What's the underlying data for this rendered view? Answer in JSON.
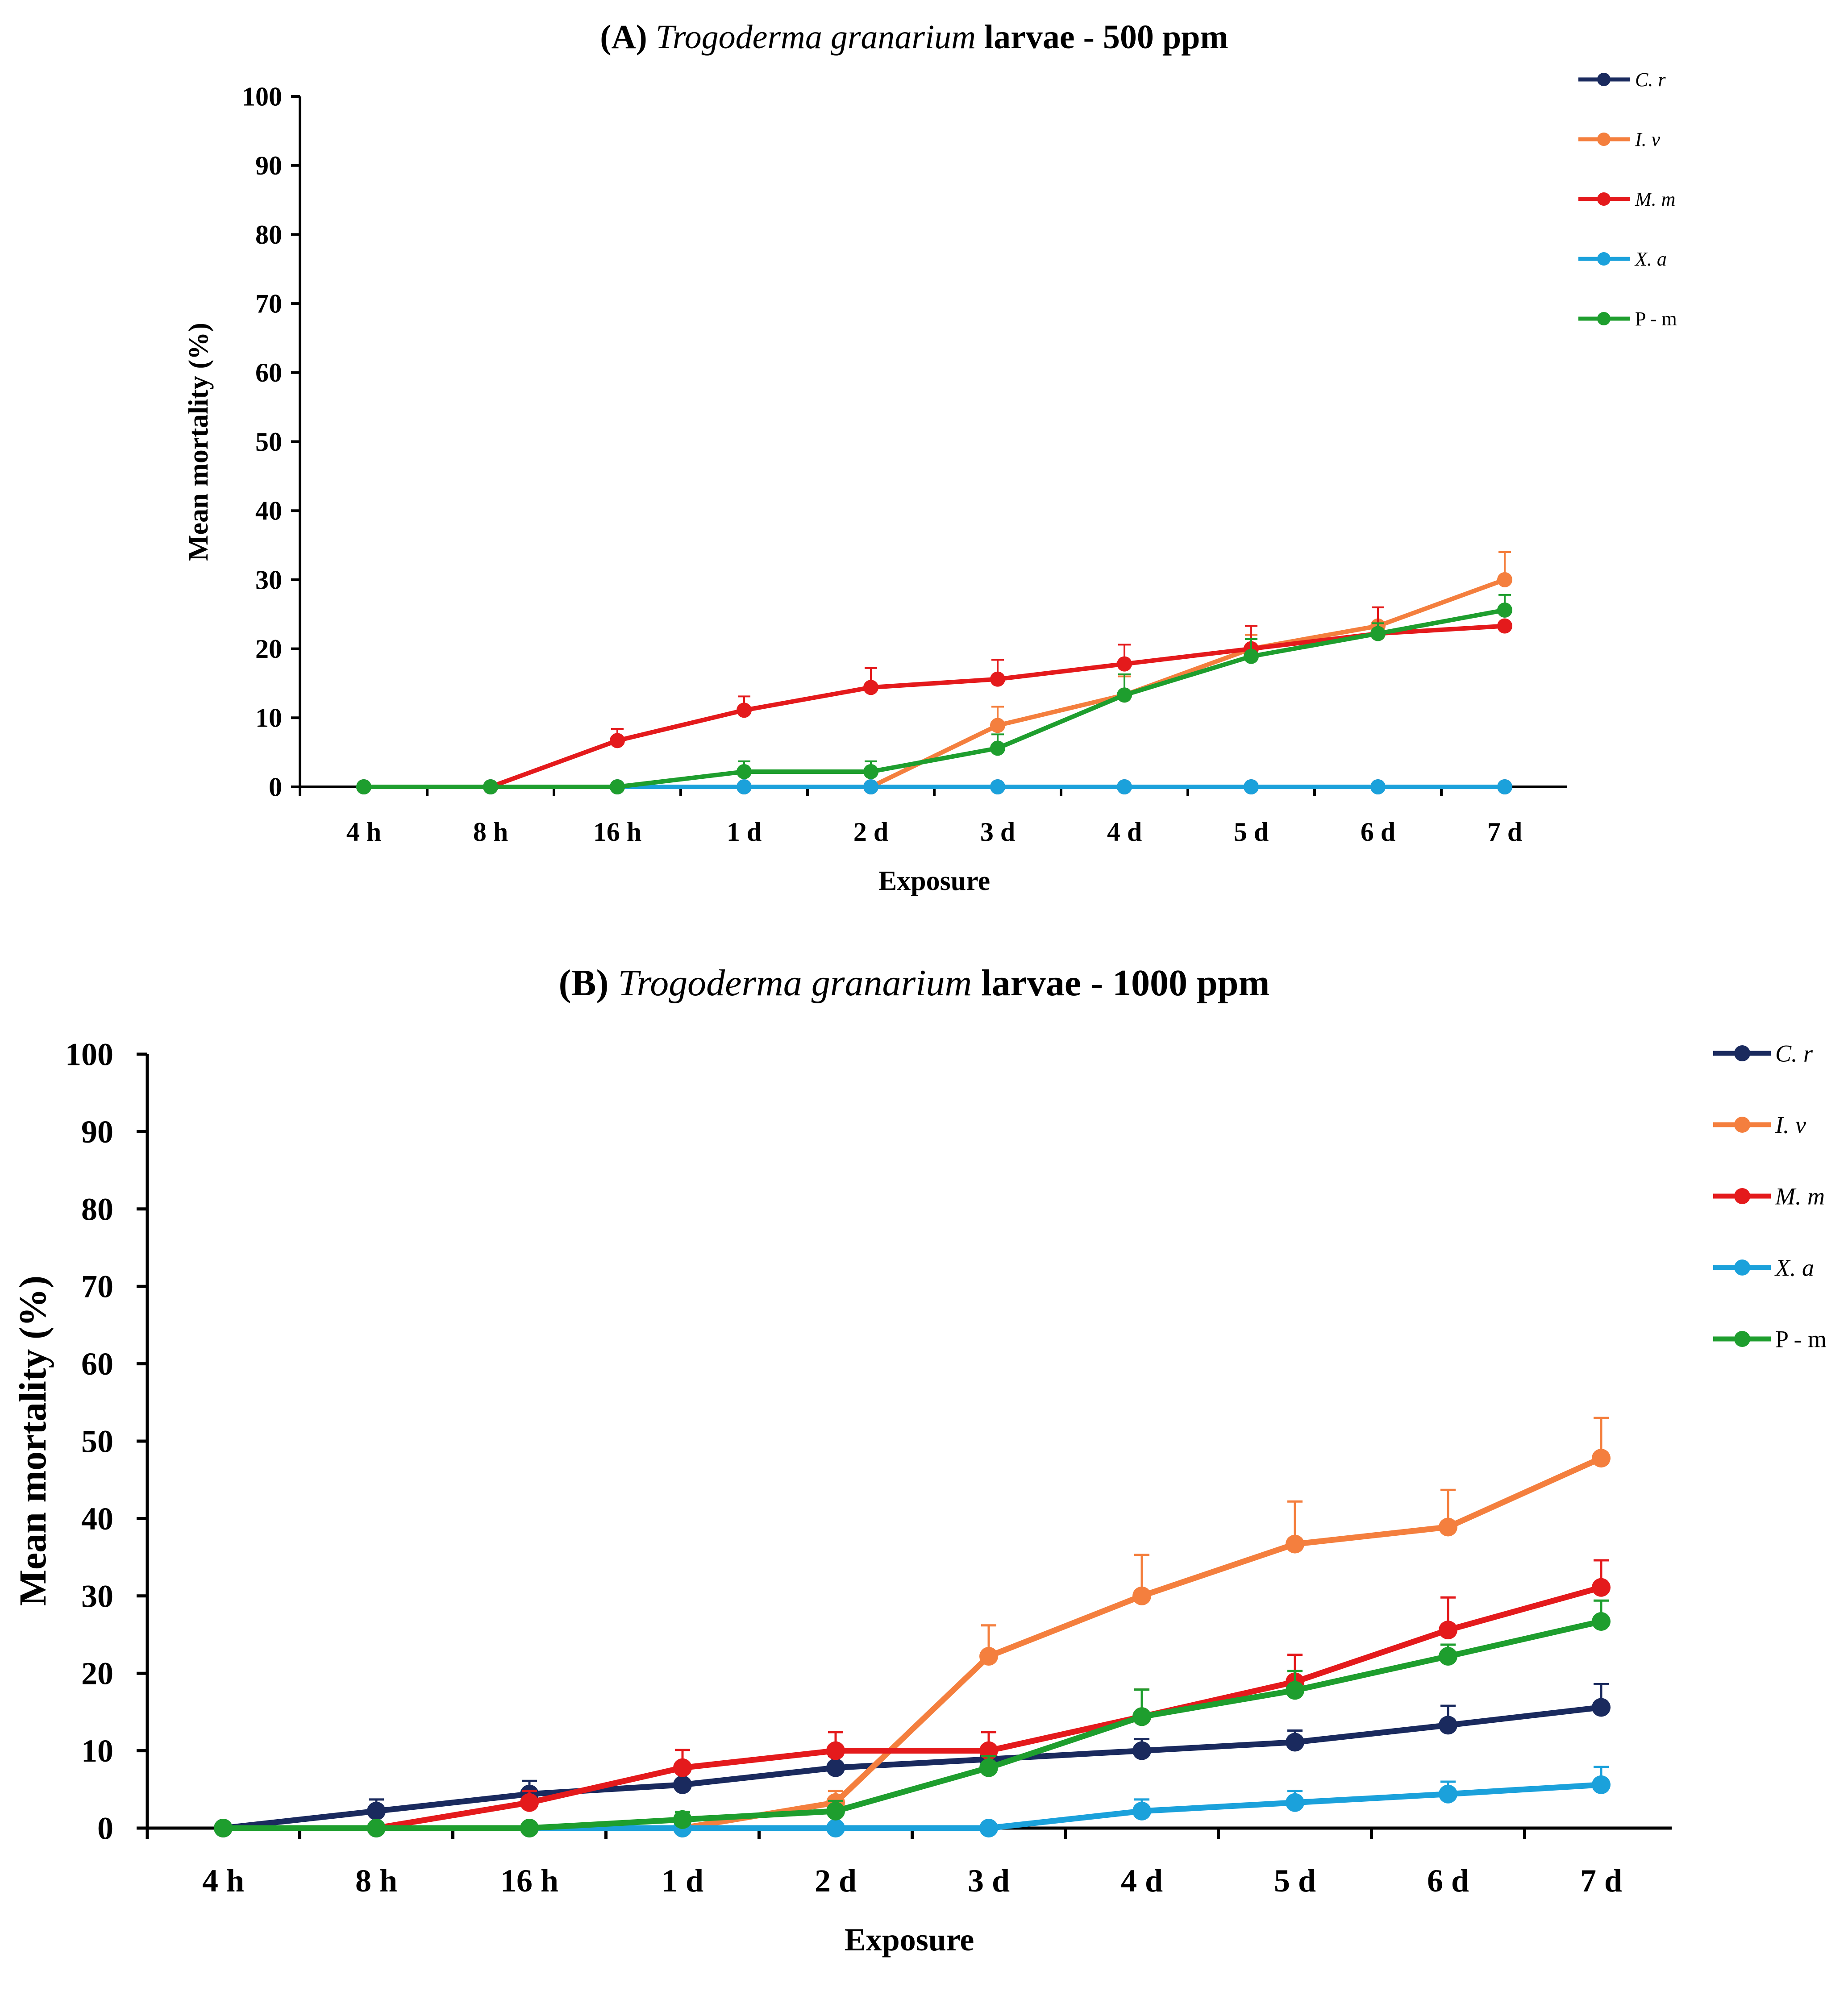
{
  "chart_data": [
    {
      "type": "line",
      "title_prefix": "(A)",
      "title_species": "Trogoderma granarium",
      "title_suffix": "larvae - 500 ppm",
      "xlabel": "Exposure",
      "ylabel": "Mean mortality (%)",
      "ylim": [
        0,
        100
      ],
      "yticks": [
        "0",
        "10",
        "20",
        "30",
        "40",
        "50",
        "60",
        "70",
        "80",
        "90",
        "100"
      ],
      "categories": [
        "4 h",
        "8 h",
        "16 h",
        "1 d",
        "2 d",
        "3 d",
        "4 d",
        "5 d",
        "6 d",
        "7 d"
      ],
      "legend_position": "top-right",
      "series": [
        {
          "name": "C. r",
          "color": "#1a2a5e",
          "italic": true,
          "values": [
            0,
            0,
            0,
            0,
            0,
            0,
            0,
            0,
            0,
            0
          ],
          "errors": [
            0,
            0,
            0,
            0,
            0,
            0,
            0,
            0,
            0,
            0
          ]
        },
        {
          "name": "I. v",
          "color": "#f47f3e",
          "italic": true,
          "values": [
            0,
            0,
            0,
            0,
            0,
            8.9,
            13.3,
            20,
            23.3,
            30
          ],
          "errors": [
            0,
            0,
            0,
            0,
            0,
            2.7,
            2.7,
            2.0,
            2.7,
            4.0
          ]
        },
        {
          "name": "M. m",
          "color": "#e41a1c",
          "italic": true,
          "values": [
            0,
            0,
            6.7,
            11.1,
            14.4,
            15.6,
            17.8,
            20,
            22.2,
            23.3
          ],
          "errors": [
            0,
            0,
            1.7,
            2.0,
            2.8,
            2.8,
            2.8,
            3.3,
            3.8,
            0
          ]
        },
        {
          "name": "X. a",
          "color": "#1ba1db",
          "italic": true,
          "values": [
            0,
            0,
            0,
            0,
            0,
            0,
            0,
            0,
            0,
            0
          ],
          "errors": [
            0,
            0,
            0,
            0,
            0,
            0,
            0,
            0,
            0,
            0
          ]
        },
        {
          "name": "P - m",
          "color": "#1e9e2e",
          "italic": false,
          "values": [
            0,
            0,
            0,
            2.2,
            2.2,
            5.6,
            13.3,
            18.9,
            22.2,
            25.6
          ],
          "errors": [
            0,
            0,
            0,
            1.5,
            1.5,
            2.0,
            3.0,
            2.5,
            1.5,
            2.2
          ]
        }
      ]
    },
    {
      "type": "line",
      "title_prefix": "(B)",
      "title_species": "Trogoderma granarium",
      "title_suffix": "larvae - 1000 ppm",
      "xlabel": "Exposure",
      "ylabel": "Mean mortality (%)",
      "ylim": [
        0,
        100
      ],
      "yticks": [
        "0",
        "10",
        "20",
        "30",
        "40",
        "50",
        "60",
        "70",
        "80",
        "90",
        "100"
      ],
      "categories": [
        "4 h",
        "8 h",
        "16 h",
        "1 d",
        "2 d",
        "3 d",
        "4 d",
        "5 d",
        "6 d",
        "7 d"
      ],
      "legend_position": "top-right",
      "series": [
        {
          "name": "C. r",
          "color": "#1a2a5e",
          "italic": true,
          "values": [
            0,
            2.2,
            4.4,
            5.6,
            7.8,
            8.9,
            10,
            11.1,
            13.3,
            15.6
          ],
          "errors": [
            0,
            1.5,
            1.7,
            1.8,
            1.5,
            1.5,
            1.5,
            1.5,
            2.5,
            3.0
          ]
        },
        {
          "name": "I. v",
          "color": "#f47f3e",
          "italic": true,
          "values": [
            0,
            0,
            0,
            0,
            3.3,
            22.2,
            30,
            36.7,
            38.9,
            47.8
          ],
          "errors": [
            0,
            0,
            0,
            0,
            1.5,
            4.0,
            5.3,
            5.5,
            4.8,
            5.2
          ]
        },
        {
          "name": "M. m",
          "color": "#e41a1c",
          "italic": true,
          "values": [
            0,
            0,
            3.3,
            7.8,
            10,
            10,
            14.4,
            18.9,
            25.6,
            31.1
          ],
          "errors": [
            0,
            0,
            1.5,
            2.3,
            2.4,
            2.4,
            3.5,
            3.5,
            4.2,
            3.5
          ]
        },
        {
          "name": "X. a",
          "color": "#1ba1db",
          "italic": true,
          "values": [
            0,
            0,
            0,
            0,
            0,
            0,
            2.2,
            3.3,
            4.4,
            5.6
          ],
          "errors": [
            0,
            0,
            0,
            0,
            0,
            0,
            1.5,
            1.5,
            1.6,
            2.3
          ]
        },
        {
          "name": "P - m",
          "color": "#1e9e2e",
          "italic": false,
          "values": [
            0,
            0,
            0,
            1.1,
            2.2,
            7.8,
            14.4,
            17.8,
            22.2,
            26.7
          ],
          "errors": [
            0,
            0,
            0,
            1.0,
            1.3,
            1.5,
            3.5,
            2.5,
            1.5,
            2.7
          ]
        }
      ]
    }
  ]
}
